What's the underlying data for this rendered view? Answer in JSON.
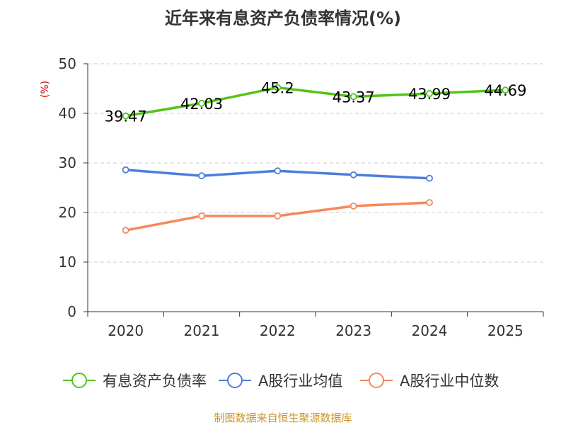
{
  "chart_data": {
    "type": "line",
    "title": "近年来有息资产负债率情况(%)",
    "ylabel": "(%)",
    "xlabel": "",
    "categories": [
      "2020",
      "2021",
      "2022",
      "2023",
      "2024",
      "2025"
    ],
    "ylim": [
      0,
      50
    ],
    "yticks": [
      0,
      10,
      20,
      30,
      40,
      50
    ],
    "grid": true,
    "legend_position": "bottom",
    "series": [
      {
        "name": "有息资产负债率",
        "color": "#52c41a",
        "values": [
          39.47,
          42.03,
          45.2,
          43.37,
          43.99,
          44.69
        ],
        "labels": [
          "39.47",
          "42.03",
          "45.2",
          "43.37",
          "43.99",
          "44.69"
        ],
        "show_labels": true
      },
      {
        "name": "A股行业均值",
        "color": "#4a7fdc",
        "values": [
          28.6,
          27.4,
          28.4,
          27.6,
          26.9,
          null
        ],
        "show_labels": false
      },
      {
        "name": "A股行业中位数",
        "color": "#f5895a",
        "values": [
          16.4,
          19.3,
          19.3,
          21.3,
          22.0,
          null
        ],
        "show_labels": false
      }
    ]
  },
  "source": {
    "text": "制图数据来自恒生聚源数据库",
    "color": "#c8962a"
  },
  "colors": {
    "title": "#333333",
    "ylabel": "#cc0000",
    "axis": "#333333",
    "grid": "#cccccc"
  }
}
